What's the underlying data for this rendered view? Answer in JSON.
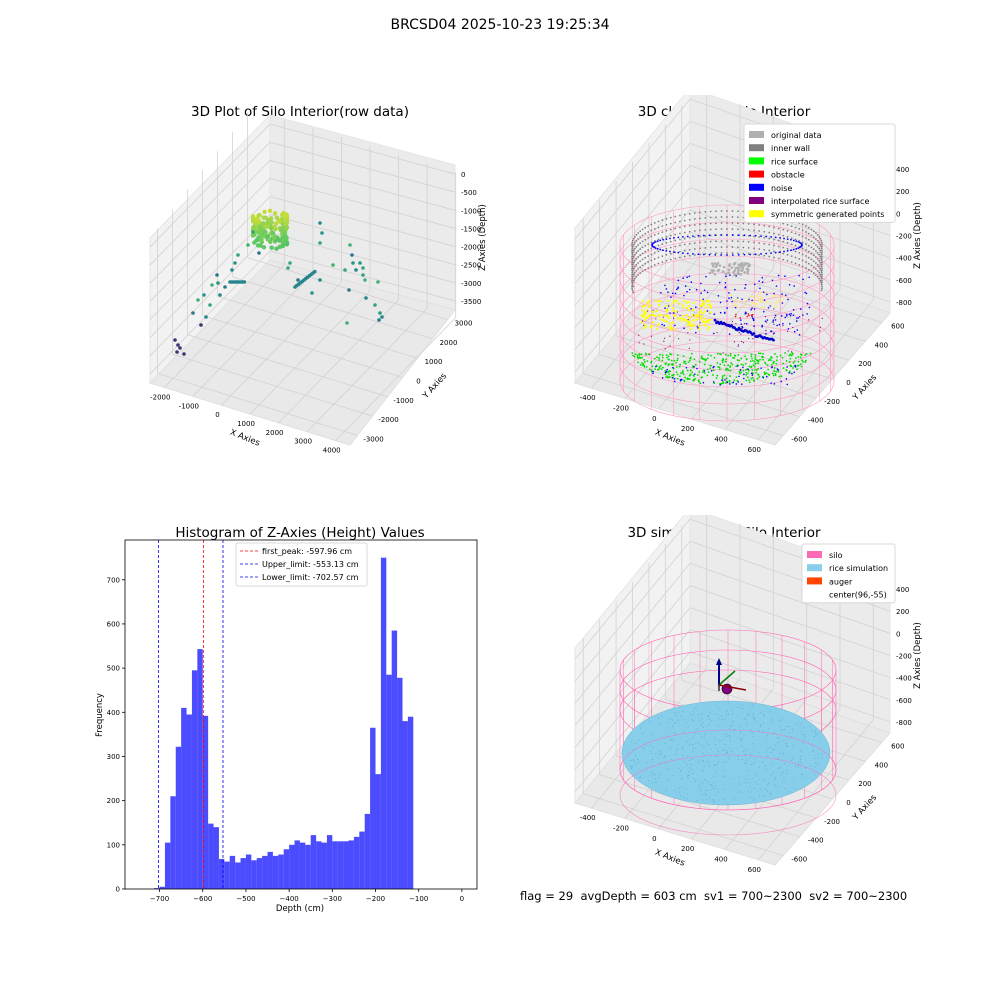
{
  "figure": {
    "title": "BRCSD04 2025-10-23 19:25:34",
    "footer": "flag = 29  avgDepth = 603 cm  sv1 = 700~2300  sv2 = 700~2300"
  },
  "chart_data": [
    {
      "type": "scatter",
      "title": "3D Plot of Silo Interior(row data)",
      "xlabel": "X Axies",
      "ylabel": "Y Axies",
      "zlabel": "Z Axies (Depth)",
      "x_ticks": [
        "-2000",
        "-1000",
        "0",
        "1000",
        "2000",
        "3000",
        "4000"
      ],
      "y_ticks": [
        "-3000",
        "-2000",
        "-1000",
        "0",
        "1000",
        "2000",
        "3000"
      ],
      "z_ticks": [
        "0",
        "-500",
        "-1000",
        "-1500",
        "-2000",
        "-2500",
        "-3000",
        "-3500"
      ],
      "colormap": "viridis"
    },
    {
      "type": "scatter",
      "title": "3D classify of Silo Interior",
      "xlabel": "X Axies",
      "ylabel": "Y Axies",
      "zlabel": "Z Axies (Depth)",
      "x_ticks": [
        "-400",
        "-200",
        "0",
        "200",
        "400",
        "600"
      ],
      "y_ticks": [
        "-600",
        "-400",
        "-200",
        "0",
        "200",
        "400",
        "600"
      ],
      "z_ticks": [
        "400",
        "200",
        "0",
        "-200",
        "-400",
        "-600",
        "-800"
      ],
      "legend": [
        {
          "label": "original data",
          "color": "#b0b0b0"
        },
        {
          "label": "inner wall",
          "color": "#808080"
        },
        {
          "label": "rice surface",
          "color": "#00ff00"
        },
        {
          "label": "obstacle",
          "color": "#ff0000"
        },
        {
          "label": "noise",
          "color": "#0000ff"
        },
        {
          "label": "interpolated rice surface",
          "color": "#800080"
        },
        {
          "label": "symmetric generated points",
          "color": "#ffff00"
        }
      ],
      "legend_position": "top-right"
    },
    {
      "type": "bar",
      "title": "Histogram of Z-Axies (Height) Values",
      "xlabel": "Depth (cm)",
      "ylabel": "Frequency",
      "xlim": [
        -780,
        35
      ],
      "ylim": [
        0,
        790
      ],
      "x_ticks": [
        -700,
        -600,
        -500,
        -400,
        -300,
        -200,
        -100,
        0
      ],
      "y_ticks": [
        0,
        100,
        200,
        300,
        400,
        500,
        600,
        700
      ],
      "bin_width": 12.5,
      "bin_start": -712.5,
      "values": [
        2,
        5,
        105,
        210,
        322,
        410,
        395,
        495,
        543,
        392,
        148,
        140,
        68,
        62,
        75,
        60,
        70,
        78,
        65,
        70,
        75,
        84,
        75,
        78,
        90,
        100,
        110,
        105,
        100,
        122,
        108,
        105,
        122,
        108,
        108,
        108,
        110,
        118,
        130,
        170,
        365,
        260,
        750,
        485,
        585,
        478,
        380,
        390
      ],
      "bar_color": "#0000ff",
      "lines": [
        {
          "label": "first_peak: -597.96 cm",
          "x": -597.96,
          "color": "#ff0000"
        },
        {
          "label": "Upper_limit: -553.13 cm",
          "x": -553.13,
          "color": "#0000ff"
        },
        {
          "label": "Lower_limit: -702.57 cm",
          "x": -702.57,
          "color": "#0000ff"
        }
      ],
      "legend_position": "top-center"
    },
    {
      "type": "scatter",
      "title": "3D simulation of Silo Interior",
      "xlabel": "X Axies",
      "ylabel": "Y Axies",
      "zlabel": "Z Axies (Depth)",
      "x_ticks": [
        "-400",
        "-200",
        "0",
        "200",
        "400",
        "600"
      ],
      "y_ticks": [
        "-600",
        "-400",
        "-200",
        "0",
        "200",
        "400",
        "600"
      ],
      "z_ticks": [
        "400",
        "200",
        "0",
        "-200",
        "-400",
        "-600",
        "-800"
      ],
      "legend": [
        {
          "label": "silo",
          "color": "#ff69b4"
        },
        {
          "label": "rice simulation",
          "color": "#87ceeb"
        },
        {
          "label": "auger",
          "color": "#ff4500"
        },
        {
          "label": "center(96,-55)",
          "color": "#ffffff"
        }
      ],
      "legend_position": "top-right"
    }
  ]
}
